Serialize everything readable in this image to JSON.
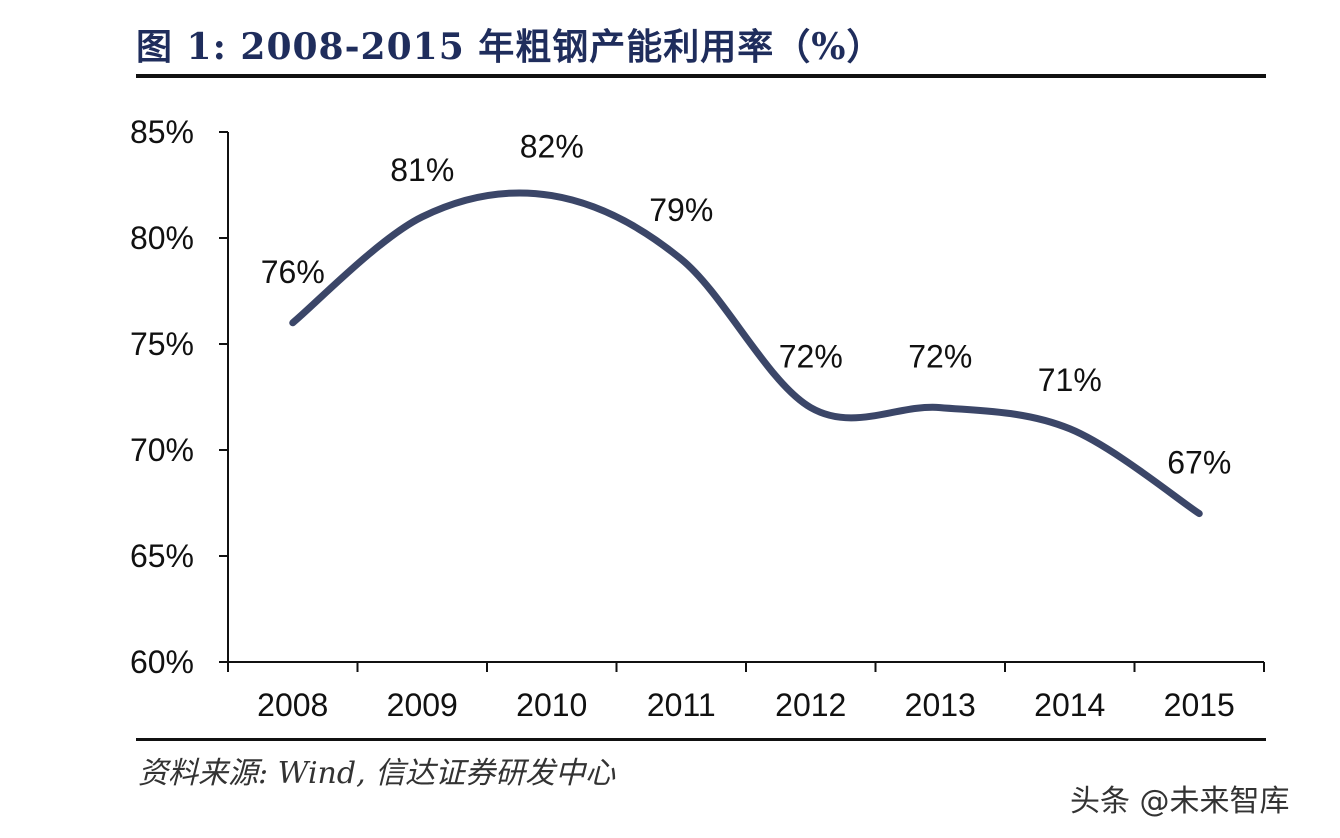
{
  "title": "图 1: 2008-2015 年粗钢产能利用率（%）",
  "source": "资料来源: Wind, 信达证券研发中心",
  "watermark": "头条 @未来智库",
  "colors": {
    "title": "#1f2d5c",
    "line": "#3b4668",
    "axis": "#111111"
  },
  "chart_data": {
    "type": "line",
    "title": "2008-2015 年粗钢产能利用率（%）",
    "categories": [
      "2008",
      "2009",
      "2010",
      "2011",
      "2012",
      "2013",
      "2014",
      "2015"
    ],
    "values": [
      76,
      81,
      82,
      79,
      72,
      72,
      71,
      67
    ],
    "data_labels": [
      "76%",
      "81%",
      "82%",
      "79%",
      "72%",
      "72%",
      "71%",
      "67%"
    ],
    "y_ticks": [
      60,
      65,
      70,
      75,
      80,
      85
    ],
    "y_tick_labels": [
      "60%",
      "65%",
      "70%",
      "75%",
      "80%",
      "85%"
    ],
    "ylim": [
      60,
      85
    ],
    "xlabel": "",
    "ylabel": "",
    "grid": false,
    "smooth": true
  }
}
